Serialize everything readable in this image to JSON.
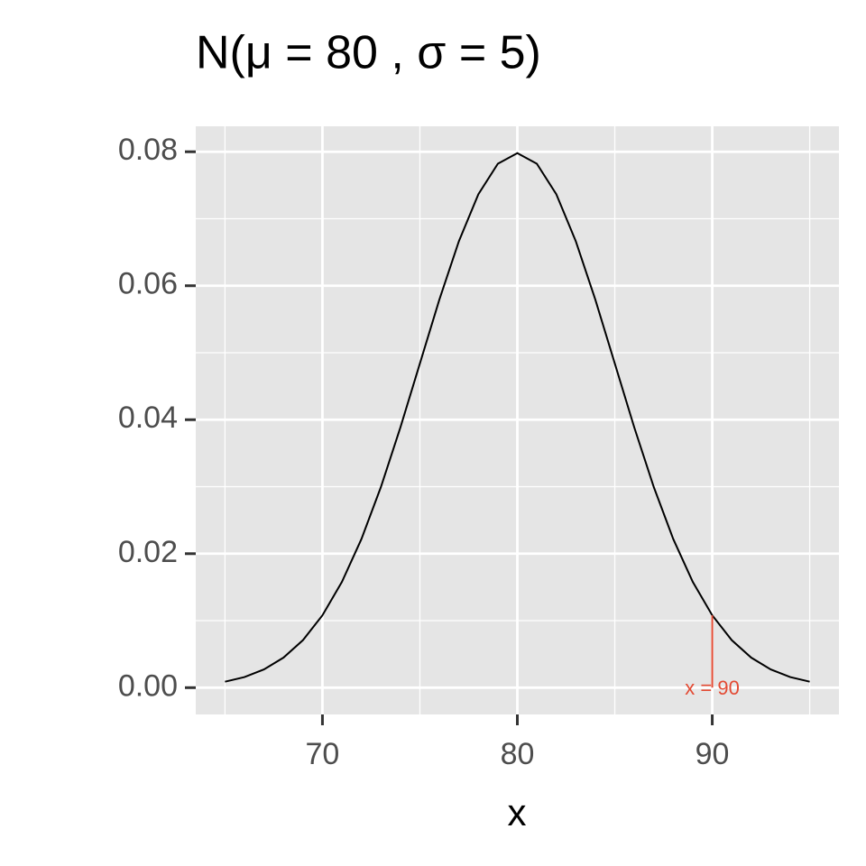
{
  "chart_data": {
    "type": "line",
    "title": "N(μ = 80 , σ = 5)",
    "x_label": "x",
    "x": [
      65,
      66,
      67,
      68,
      69,
      70,
      71,
      72,
      73,
      74,
      75,
      76,
      77,
      78,
      79,
      80,
      81,
      82,
      83,
      84,
      85,
      86,
      87,
      88,
      89,
      90,
      91,
      92,
      93,
      94,
      95
    ],
    "series": [
      {
        "color": "#000000",
        "values": [
          0.00089,
          0.00158,
          0.00272,
          0.00448,
          0.00709,
          0.0108,
          0.01579,
          0.02218,
          0.02995,
          0.03884,
          0.04839,
          0.05794,
          0.06664,
          0.07365,
          0.07821,
          0.07979,
          0.07821,
          0.07365,
          0.06664,
          0.05794,
          0.04839,
          0.03884,
          0.02995,
          0.02218,
          0.01579,
          0.0108,
          0.00709,
          0.00448,
          0.00272,
          0.00158,
          0.00089
        ]
      }
    ],
    "xlim": [
      63.5,
      96.5
    ],
    "ylim": [
      -0.004,
      0.0838
    ],
    "xticks": [
      70,
      80,
      90
    ],
    "yticks": [
      {
        "value": 0,
        "label": "0.00"
      },
      {
        "value": 0.02,
        "label": "0.02"
      },
      {
        "value": 0.04,
        "label": "0.04"
      },
      {
        "value": 0.06,
        "label": "0.06"
      },
      {
        "value": 0.08,
        "label": "0.08"
      }
    ],
    "grid": true,
    "annotations": [
      {
        "text": "x = 90",
        "x": 90,
        "y": 0.0108,
        "color": "#e34a33"
      }
    ]
  }
}
